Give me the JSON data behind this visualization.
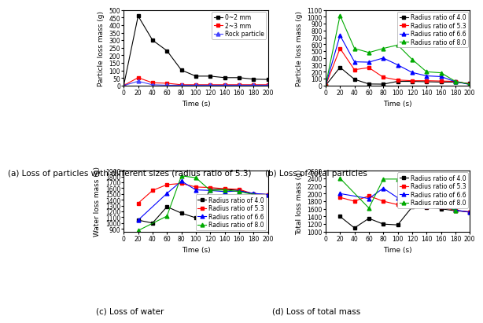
{
  "time": [
    0,
    20,
    40,
    60,
    80,
    100,
    120,
    140,
    160,
    180,
    200
  ],
  "subplot_a": {
    "caption": "(a) Loss of particles with different sizes (radius ratio of 5.3)",
    "ylabel": "Particle loss mass (g)",
    "xlabel": "Time (s)",
    "ylim": [
      0,
      500
    ],
    "yticks": [
      0,
      50,
      100,
      150,
      200,
      250,
      300,
      350,
      400,
      450,
      500
    ],
    "legend_loc": "upper right",
    "series": [
      {
        "label": "0~2 mm",
        "color": "#000000",
        "marker": "s",
        "data": [
          0,
          460,
          300,
          230,
          102,
          62,
          62,
          52,
          52,
          42,
          40
        ]
      },
      {
        "label": "2~3 mm",
        "color": "#ff0000",
        "marker": "s",
        "data": [
          0,
          52,
          18,
          15,
          5,
          5,
          5,
          5,
          5,
          5,
          5
        ]
      },
      {
        "label": "Rock particle",
        "color": "#4444ff",
        "marker": "^",
        "data": [
          0,
          28,
          5,
          2,
          2,
          2,
          2,
          2,
          2,
          2,
          2
        ]
      }
    ]
  },
  "subplot_b": {
    "caption": "(b) Loss of total particles",
    "ylabel": "Particle loss mass (g)",
    "xlabel": "Time (s)",
    "ylim": [
      0,
      1100
    ],
    "yticks": [
      0,
      100,
      200,
      300,
      400,
      500,
      600,
      700,
      800,
      900,
      1000,
      1100
    ],
    "legend_loc": "upper right",
    "series": [
      {
        "label": "Radius ratio of 4.0",
        "color": "#000000",
        "marker": "s",
        "data": [
          0,
          265,
          90,
          22,
          20,
          60,
          60,
          55,
          50,
          50,
          28
        ]
      },
      {
        "label": "Radius ratio of 5.3",
        "color": "#ff0000",
        "marker": "s",
        "data": [
          0,
          540,
          230,
          260,
          120,
          80,
          70,
          70,
          65,
          60,
          22
        ]
      },
      {
        "label": "Radius ratio of 6.6",
        "color": "#0000ff",
        "marker": "^",
        "data": [
          0,
          730,
          345,
          340,
          400,
          300,
          190,
          140,
          130,
          55,
          15
        ]
      },
      {
        "label": "Radius ratio of 8.0",
        "color": "#00aa00",
        "marker": "^",
        "data": [
          0,
          1020,
          540,
          480,
          540,
          590,
          380,
          200,
          185,
          60,
          18
        ]
      }
    ]
  },
  "subplot_c": {
    "caption": "(c) Loss of water",
    "ylabel": "Water loss mass (g)",
    "xlabel": "Time (s)",
    "ylim": [
      850,
      1900
    ],
    "yticks": [
      900,
      1000,
      1100,
      1200,
      1300,
      1400,
      1500,
      1600,
      1700,
      1800,
      1900
    ],
    "legend_loc": "lower right",
    "series": [
      {
        "label": "Radius ratio of 4.0",
        "color": "#000000",
        "marker": "s",
        "data": [
          null,
          1050,
          1000,
          1280,
          1170,
          1090,
          1580,
          1580,
          1560,
          1500,
          1490
        ]
      },
      {
        "label": "Radius ratio of 5.3",
        "color": "#ff0000",
        "marker": "s",
        "data": [
          null,
          1340,
          1560,
          1660,
          1680,
          1620,
          1610,
          1590,
          1580,
          1500,
          1490
        ]
      },
      {
        "label": "Radius ratio of 6.6",
        "color": "#0000ff",
        "marker": "^",
        "data": [
          null,
          1050,
          null,
          1510,
          1720,
          1570,
          1560,
          1540,
          1550,
          1510,
          1490
        ]
      },
      {
        "label": "Radius ratio of 8.0",
        "color": "#00aa00",
        "marker": "^",
        "data": [
          null,
          870,
          null,
          1120,
          1810,
          1780,
          1560,
          1570,
          1540,
          1490,
          null
        ]
      }
    ]
  },
  "subplot_d": {
    "caption": "(d) Loss of total mass",
    "ylabel": "Total loss mass (g)",
    "xlabel": "Time (s)",
    "ylim": [
      1000,
      2600
    ],
    "yticks": [
      1000,
      1200,
      1400,
      1600,
      1800,
      2000,
      2200,
      2400,
      2600
    ],
    "legend_loc": "upper right",
    "series": [
      {
        "label": "Radius ratio of 4.0",
        "color": "#000000",
        "marker": "s",
        "data": [
          null,
          1400,
          1100,
          1350,
          1200,
          1180,
          1650,
          1640,
          1600,
          1550,
          1520
        ]
      },
      {
        "label": "Radius ratio of 5.3",
        "color": "#ff0000",
        "marker": "s",
        "data": [
          null,
          1900,
          1800,
          1940,
          1800,
          1710,
          1680,
          1660,
          1650,
          1560,
          1520
        ]
      },
      {
        "label": "Radius ratio of 6.6",
        "color": "#0000ff",
        "marker": "^",
        "data": [
          null,
          2000,
          null,
          1870,
          2140,
          1890,
          1760,
          1680,
          1680,
          1570,
          1510
        ]
      },
      {
        "label": "Radius ratio of 8.0",
        "color": "#00aa00",
        "marker": "^",
        "data": [
          null,
          2400,
          null,
          1620,
          2380,
          2380,
          1940,
          1780,
          1720,
          1560,
          null
        ]
      }
    ]
  },
  "legend_fontsize": 5.5,
  "axis_label_fontsize": 6.5,
  "tick_fontsize": 5.5,
  "caption_fontsize": 7.5,
  "line_width": 0.8,
  "marker_size": 3.5
}
